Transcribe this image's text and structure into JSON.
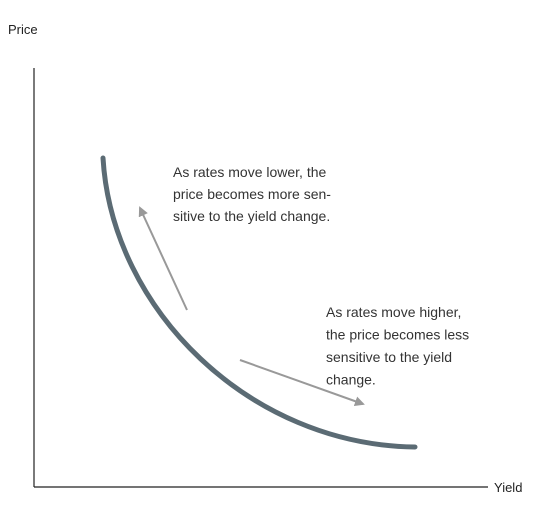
{
  "axes": {
    "y_label": "Price",
    "x_label": "Yield"
  },
  "annotations": [
    {
      "lines": [
        "As rates move lower, the",
        "price becomes more sen-",
        "sitive to the yield change."
      ]
    },
    {
      "lines": [
        "As rates move higher,",
        "the price becomes less",
        "sensitive to the yield",
        "change."
      ]
    }
  ]
}
